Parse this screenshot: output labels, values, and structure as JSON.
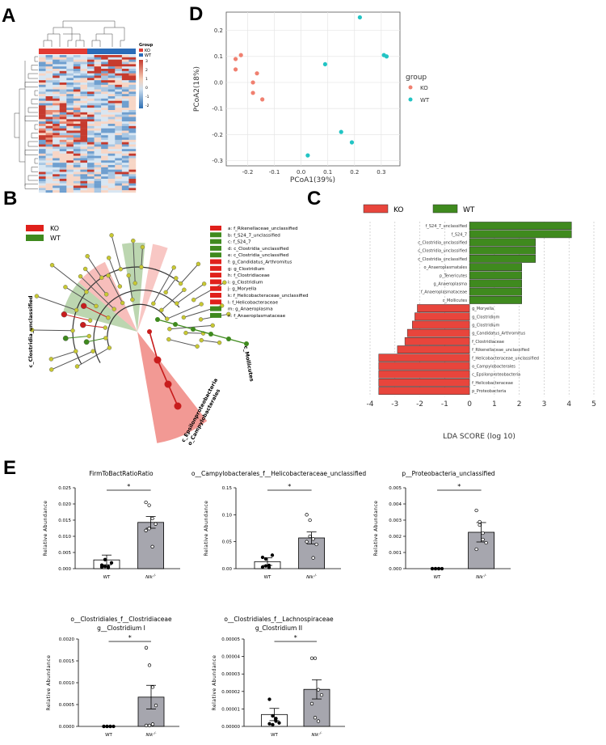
{
  "panel_labels": {
    "a": "A",
    "b": "B",
    "c": "C",
    "d": "D",
    "e": "E"
  },
  "colors": {
    "ko": "#e8453c",
    "wt": "#3f8a1e",
    "ko_pca": "#f08070",
    "wt_pca": "#22c4c4",
    "heat_low": "#2d6fb3",
    "heat_high": "#c63b2e",
    "node": "#c8c832"
  },
  "heatmap": {
    "legend_title": "Group",
    "group_ko": "KO",
    "group_wt": "WT",
    "scale_ticks": [
      "3",
      "2",
      "1",
      "0",
      "-1",
      "-2"
    ]
  },
  "cladogram": {
    "legend_ko": "KO",
    "legend_wt": "WT",
    "clade_labels": [
      "c_Clostridia_unclassified",
      "c_Mollicutes",
      "c_Epsilonproteobacteria",
      "o_Campylobacterales"
    ],
    "key": [
      {
        "text": "a: f_Rikenellaceae_unclassified",
        "group": "ko"
      },
      {
        "text": "b: f_S24_7_unclassified",
        "group": "wt"
      },
      {
        "text": "c: f_S24_7",
        "group": "wt"
      },
      {
        "text": "d: c_Clostridia_unclassified",
        "group": "wt"
      },
      {
        "text": "e: c_Clostridia_unclassified",
        "group": "wt"
      },
      {
        "text": "f: g_Candidatus_Arthromitus",
        "group": "ko"
      },
      {
        "text": "g: g_Clostridium",
        "group": "ko"
      },
      {
        "text": "h: f_Clostridiaceae",
        "group": "ko"
      },
      {
        "text": "i: g_Clostridium",
        "group": "ko"
      },
      {
        "text": "j: g_Moryella",
        "group": "ko"
      },
      {
        "text": "k: f_Helicobacteraceae_unclassified",
        "group": "ko"
      },
      {
        "text": "l: f_Helicobacteraceae",
        "group": "ko"
      },
      {
        "text": "m: g_Anaeroplasma",
        "group": "wt"
      },
      {
        "text": "n: f_Anaeroplasmataceae",
        "group": "wt"
      }
    ]
  },
  "chart_data": [
    {
      "id": "pcoa",
      "type": "scatter",
      "xlabel": "PCoA1(39%)",
      "ylabel": "PCoA2(18%)",
      "xlim": [
        -0.28,
        0.37
      ],
      "ylim": [
        -0.32,
        0.27
      ],
      "xticks": [
        "-0.2",
        "-0.1",
        "0.0",
        "0.1",
        "0.2",
        "0.3"
      ],
      "xtickvals": [
        -0.2,
        -0.1,
        0.0,
        0.1,
        0.2,
        0.3
      ],
      "yticks": [
        "0.2",
        "0.1",
        "0.0",
        "-0.1",
        "-0.2",
        "-0.3"
      ],
      "ytickvals": [
        0.2,
        0.1,
        0.0,
        -0.1,
        -0.2,
        -0.3
      ],
      "legend_title": "group",
      "series": [
        {
          "name": "KO",
          "points": [
            [
              -0.245,
              0.09
            ],
            [
              -0.225,
              0.105
            ],
            [
              -0.245,
              0.05
            ],
            [
              -0.165,
              0.035
            ],
            [
              -0.18,
              0.0
            ],
            [
              -0.18,
              -0.04
            ],
            [
              -0.145,
              -0.065
            ]
          ]
        },
        {
          "name": "WT",
          "points": [
            [
              0.22,
              0.25
            ],
            [
              0.09,
              0.07
            ],
            [
              0.31,
              0.105
            ],
            [
              0.32,
              0.1
            ],
            [
              0.15,
              -0.19
            ],
            [
              0.19,
              -0.23
            ],
            [
              0.025,
              -0.28
            ]
          ]
        }
      ]
    },
    {
      "id": "lefse",
      "type": "bar",
      "xlabel": "LDA SCORE (log 10)",
      "xlim": [
        -4,
        5
      ],
      "xticks": [
        "-4",
        "-3",
        "-2",
        "-1",
        "0",
        "1",
        "2",
        "3",
        "4",
        "5"
      ],
      "xtickvals": [
        -4,
        -3,
        -2,
        -1,
        0,
        1,
        2,
        3,
        4,
        5
      ],
      "legend": [
        "KO",
        "WT"
      ],
      "bars": [
        {
          "label": "f_S24_7_unclassified",
          "value": 4.1,
          "group": "WT"
        },
        {
          "label": "f_S24_7",
          "value": 4.1,
          "group": "WT"
        },
        {
          "label": "c_Clostridia_unclassified",
          "value": 2.65,
          "group": "WT"
        },
        {
          "label": "c_Clostridia_unclassified",
          "value": 2.65,
          "group": "WT"
        },
        {
          "label": "c_Clostridia_unclassified",
          "value": 2.65,
          "group": "WT"
        },
        {
          "label": "o_Anaeroplasmatales",
          "value": 2.1,
          "group": "WT"
        },
        {
          "label": "p_Tenericutes",
          "value": 2.1,
          "group": "WT"
        },
        {
          "label": "g_Anaeroplasma",
          "value": 2.1,
          "group": "WT"
        },
        {
          "label": "f_Anaeroplasmataceae",
          "value": 2.1,
          "group": "WT"
        },
        {
          "label": "c_Mollicutes",
          "value": 2.1,
          "group": "WT"
        },
        {
          "label": "g_Moryella",
          "value": -2.1,
          "group": "KO"
        },
        {
          "label": "g_Clostridium",
          "value": -2.2,
          "group": "KO"
        },
        {
          "label": "g_Clostridium",
          "value": -2.3,
          "group": "KO"
        },
        {
          "label": "g_Candidatus_Arthromitus",
          "value": -2.5,
          "group": "KO"
        },
        {
          "label": "f_Clostridiaceae",
          "value": -2.6,
          "group": "KO"
        },
        {
          "label": "f_Rikenellaceae_unclassified",
          "value": -2.9,
          "group": "KO"
        },
        {
          "label": "f_Helicobacteraceae_unclassified",
          "value": -3.65,
          "group": "KO"
        },
        {
          "label": "o_Campylobacterales",
          "value": -3.65,
          "group": "KO"
        },
        {
          "label": "c_Epsilonproteobacteria",
          "value": -3.65,
          "group": "KO"
        },
        {
          "label": "f_Helicobacteraceae",
          "value": -3.65,
          "group": "KO"
        },
        {
          "label": "p_Proteobacteria",
          "value": -3.65,
          "group": "KO"
        }
      ]
    },
    {
      "id": "e1",
      "type": "bar",
      "title": "FirmToBactRatioRatio",
      "ylabel": "Relative Abundance",
      "categories": [
        "WT",
        "Nlk"
      ],
      "cat_sup": [
        "",
        "-/-"
      ],
      "means": [
        0.0027,
        0.0143
      ],
      "sem": [
        0.0015,
        0.0018
      ],
      "ylim": [
        0,
        0.025
      ],
      "yticks": [
        "0.000",
        "0.005",
        "0.010",
        "0.015",
        "0.020",
        "0.025"
      ],
      "ytickvals": [
        0,
        0.005,
        0.01,
        0.015,
        0.02,
        0.025
      ],
      "points": [
        [
          0.0005,
          0.0007,
          0.0003,
          0.0018,
          0.0011,
          0.0028,
          0.0006
        ],
        [
          0.0205,
          0.0196,
          0.0155,
          0.0138,
          0.0118,
          0.0124,
          0.0068
        ]
      ],
      "sig": "*"
    },
    {
      "id": "e2",
      "type": "bar",
      "title": "o__Campylobacterales_f__Helicobacteraceae_unclassified",
      "ylabel": "Relative Abundance",
      "categories": [
        "WT",
        "Nlk"
      ],
      "cat_sup": [
        "",
        "-/-"
      ],
      "means": [
        0.013,
        0.057
      ],
      "sem": [
        0.007,
        0.011
      ],
      "ylim": [
        0,
        0.15
      ],
      "yticks": [
        "0.00",
        "0.05",
        "0.10",
        "0.15"
      ],
      "ytickvals": [
        0,
        0.05,
        0.1,
        0.15
      ],
      "points": [
        [
          0.003,
          0.005,
          0.002,
          0.025,
          0.021,
          0.018,
          0.006
        ],
        [
          0.1,
          0.09,
          0.055,
          0.045,
          0.05,
          0.06,
          0.02
        ]
      ],
      "sig": "*"
    },
    {
      "id": "e3",
      "type": "bar",
      "title": "p__Proteobacteria_unclassified",
      "ylabel": "Relative Abundance",
      "categories": [
        "WT",
        "Nlk"
      ],
      "cat_sup": [
        "",
        "-/-"
      ],
      "means": [
        0.0,
        0.00225
      ],
      "sem": [
        0.0,
        0.0006
      ],
      "ylim": [
        0,
        0.005
      ],
      "yticks": [
        "0.000",
        "0.001",
        "0.002",
        "0.003",
        "0.004",
        "0.005"
      ],
      "ytickvals": [
        0,
        0.001,
        0.002,
        0.003,
        0.004,
        0.005
      ],
      "points": [
        [
          0,
          0,
          0,
          0,
          0,
          0,
          0
        ],
        [
          0.0036,
          0.0029,
          0.0022,
          0.0016,
          0.0012,
          0.0027,
          0.0018
        ]
      ],
      "sig": "*"
    },
    {
      "id": "e4",
      "type": "bar",
      "title": "o__Clostridiales_f__Clostridiaceae",
      "subtitle": "g__Clostridium I",
      "ylabel": "Relative Abundance",
      "categories": [
        "WT",
        "Nlk"
      ],
      "cat_sup": [
        "",
        "-/-"
      ],
      "means": [
        0.0,
        0.00067
      ],
      "sem": [
        0.0,
        0.00027
      ],
      "ylim": [
        0,
        0.002
      ],
      "yticks": [
        "0.0000",
        "0.0005",
        "0.0010",
        "0.0015",
        "0.0020"
      ],
      "ytickvals": [
        0,
        0.0005,
        0.001,
        0.0015,
        0.002
      ],
      "points": [
        [
          0,
          0,
          0,
          0,
          0,
          0,
          0
        ],
        [
          0.0018,
          0.0014,
          0.0009,
          0.00048,
          2e-05,
          2e-05,
          5e-05
        ]
      ],
      "sig": "*"
    },
    {
      "id": "e5",
      "type": "bar",
      "title": "o__Clostridiales_f__Lachnospiraceae",
      "subtitle": "g_Clostridium II",
      "ylabel": "Relative Abundance",
      "categories": [
        "WT",
        "Nlk"
      ],
      "cat_sup": [
        "",
        "-/-"
      ],
      "means": [
        6.8e-06,
        2.12e-05
      ],
      "sem": [
        3.5e-06,
        5.5e-06
      ],
      "ylim": [
        0,
        5e-05
      ],
      "yticks": [
        "0.00000",
        "0.00001",
        "0.00002",
        "0.00003",
        "0.00004",
        "0.00005"
      ],
      "ytickvals": [
        0,
        1e-05,
        2e-05,
        3e-05,
        4e-05,
        5e-05
      ],
      "points": [
        [
          1.55e-05,
          6e-06,
          4.5e-06,
          2e-06,
          1.5e-06,
          1e-06,
          3e-06
        ],
        [
          3.9e-05,
          3.9e-05,
          2.1e-05,
          1.8e-05,
          1.3e-05,
          5e-06,
          3e-06
        ]
      ],
      "sig": "*"
    }
  ]
}
